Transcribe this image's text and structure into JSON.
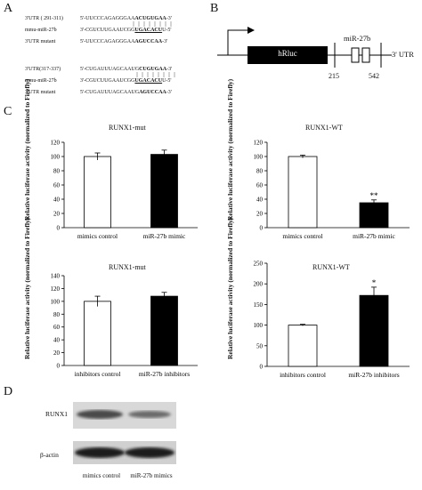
{
  "panels": {
    "a": "A",
    "b": "B",
    "c": "C",
    "d": "D"
  },
  "panelA": {
    "rows": [
      {
        "label": "3'UTR ( 291-311)",
        "prefix": "5'-UUCCCAGAGGGAA",
        "bold": "ACUGUGAA",
        "suffix": "-3'"
      },
      {
        "label": "mmu-miR-27b",
        "prefix": "3'-CGUCUUGAAUCGG",
        "bold": "UGACACU",
        "suffix": "U-5'"
      },
      {
        "label": "3'UTR mutant",
        "prefix": "5'-UUCCCAGAGGGAA",
        "bold": "AGUCCAA",
        "suffix": "-3'"
      },
      {
        "label": "3'UTR(317-337)",
        "prefix": "5'-CUGAUUUAGCAAUG",
        "bold": "CUGUGAA",
        "suffix": "-3'"
      },
      {
        "label": "mmu-miR-27b",
        "prefix": "3'-CGUCUUGAAUCGG",
        "bold": "UGACACU",
        "suffix": "U-5'"
      },
      {
        "label": "3'UTR mutant",
        "prefix": "5'-CUGAUUUAGCAAUG",
        "bold": "AGUCCAA",
        "suffix": "-3'"
      }
    ]
  },
  "panelB": {
    "gene": "hRluc",
    "mir": "miR-27b",
    "utr": "3' UTR",
    "pos_start": "215",
    "pos_end": "542"
  },
  "chart_data": [
    {
      "type": "bar",
      "title": "RUNX1-mut",
      "ylabel": "Relative luciferase activity (normalized to Firefly)",
      "categories": [
        "mimics control",
        "miR-27b mimic"
      ],
      "values": [
        100,
        103
      ],
      "errors": [
        5,
        6
      ],
      "fills": [
        "#ffffff",
        "#000000"
      ],
      "significance": [
        "",
        ""
      ],
      "ylim": [
        0,
        120
      ],
      "yticks": [
        "0",
        "20",
        "40",
        "60",
        "80",
        "100",
        "120"
      ]
    },
    {
      "type": "bar",
      "title": "RUNX1-WT",
      "ylabel": "Relative luciferase activity (normalized to Firefly)",
      "categories": [
        "mimics control",
        "miR-27b mimic"
      ],
      "values": [
        100,
        35
      ],
      "errors": [
        2,
        4
      ],
      "fills": [
        "#ffffff",
        "#000000"
      ],
      "significance": [
        "",
        "**"
      ],
      "ylim": [
        0,
        120
      ],
      "yticks": [
        "0",
        "20",
        "40",
        "60",
        "80",
        "100",
        "120"
      ]
    },
    {
      "type": "bar",
      "title": "RUNX1-mut",
      "ylabel": "Relative luciferase activity (normalized to Firefly)",
      "categories": [
        "inhibitors control",
        "miR-27b inhibitors"
      ],
      "values": [
        100,
        108
      ],
      "errors": [
        8,
        6
      ],
      "fills": [
        "#ffffff",
        "#000000"
      ],
      "significance": [
        "",
        ""
      ],
      "ylim": [
        0,
        140
      ],
      "yticks": [
        "0",
        "20",
        "40",
        "60",
        "80",
        "100",
        "120",
        "140"
      ]
    },
    {
      "type": "bar",
      "title": "RUNX1-WT",
      "ylabel": "Relative luciferase activity (normalized to Firefly)",
      "categories": [
        "inhibitors control",
        "miR-27b inhibitors"
      ],
      "values": [
        100,
        172
      ],
      "errors": [
        2,
        20
      ],
      "fills": [
        "#ffffff",
        "#000000"
      ],
      "significance": [
        "",
        "*"
      ],
      "ylim": [
        0,
        250
      ],
      "yticks": [
        "0",
        "50",
        "100",
        "150",
        "200",
        "250"
      ]
    }
  ],
  "panelD": {
    "bands": [
      "RUNX1",
      "β-actin"
    ],
    "lanes": [
      "mimics control",
      "miR-27b mimics"
    ]
  }
}
